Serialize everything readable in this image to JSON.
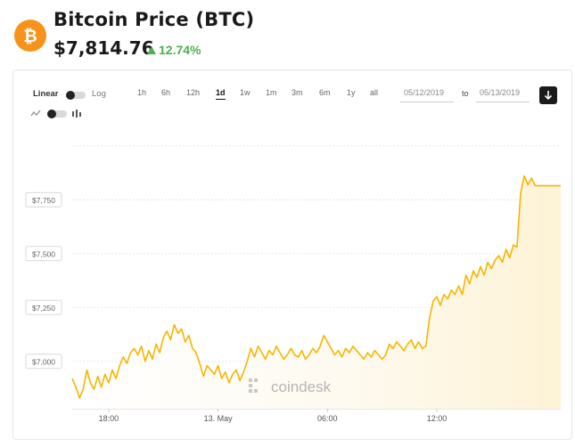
{
  "header": {
    "title": "Bitcoin Price (BTC)",
    "price": "$7,814.76",
    "change": "12.74%",
    "change_color": "#4caf50",
    "logo_color": "#f7931a",
    "logo_icon": "bitcoin-logo-icon"
  },
  "controls": {
    "scale_linear_label": "Linear",
    "scale_log_label": "Log",
    "ranges": [
      "1h",
      "6h",
      "1d",
      "1w",
      "1m",
      "3m",
      "6m",
      "1y",
      "all"
    ],
    "ranges_display": [
      "1h",
      "6h",
      "12h",
      "1d",
      "1w",
      "1m",
      "3m",
      "6m",
      "1y",
      "all"
    ],
    "active_range": "1d",
    "date_from": "05/12/2019",
    "to_label": "to",
    "date_to": "05/13/2019",
    "download_icon": "download-icon",
    "line_icon": "line-chart-icon",
    "candle_icon": "candlestick-icon"
  },
  "watermark": "coindesk",
  "chart_data": {
    "type": "area",
    "title": "",
    "xlabel": "",
    "ylabel": "",
    "x_tick_labels": [
      "18:00",
      "13. May",
      "06:00",
      "12:00"
    ],
    "y_tick_labels": [
      "$7,000",
      "$7,250",
      "$7,500",
      "$7,750"
    ],
    "y_ticks": [
      7000,
      7250,
      7500,
      7750
    ],
    "ylim": [
      6780,
      8020
    ],
    "x_unit": "hours since 12 May 16:00",
    "xlim": [
      0,
      26.8
    ],
    "x_ticks": [
      2,
      8,
      14,
      20
    ],
    "grid": true,
    "line_color": "#f7b500",
    "fill_color": "#fdf3d6",
    "series": [
      {
        "x": [
          0,
          0.2,
          0.4,
          0.6,
          0.8,
          1.0,
          1.2,
          1.4,
          1.6,
          1.8,
          2.0,
          2.2,
          2.4,
          2.6,
          2.8,
          3.0,
          3.2,
          3.4,
          3.6,
          3.8,
          4.0,
          4.2,
          4.4,
          4.6,
          4.8,
          5.0,
          5.2,
          5.4,
          5.6,
          5.8,
          6.0,
          6.2,
          6.4,
          6.6,
          6.8,
          7.0,
          7.2,
          7.4,
          7.6,
          7.8,
          8.0,
          8.2,
          8.4,
          8.6,
          8.8,
          9.0,
          9.2,
          9.4,
          9.6,
          9.8,
          10.0,
          10.2,
          10.4,
          10.6,
          10.8,
          11.0,
          11.2,
          11.4,
          11.6,
          11.8,
          12.0,
          12.2,
          12.4,
          12.6,
          12.8,
          13.0,
          13.2,
          13.4,
          13.6,
          13.8,
          14.0,
          14.2,
          14.4,
          14.6,
          14.8,
          15.0,
          15.2,
          15.4,
          15.6,
          15.8,
          16.0,
          16.2,
          16.4,
          16.6,
          16.8,
          17.0,
          17.2,
          17.4,
          17.6,
          17.8,
          18.0,
          18.2,
          18.4,
          18.6,
          18.8,
          19.0,
          19.2,
          19.4,
          19.6,
          19.8,
          20.0,
          20.2,
          20.4,
          20.6,
          20.8,
          21.0,
          21.2,
          21.4,
          21.6,
          21.8,
          22.0,
          22.2,
          22.4,
          22.6,
          22.8,
          23.0,
          23.2,
          23.4,
          23.6,
          23.8,
          24.0,
          24.2,
          24.4,
          24.6,
          24.8,
          25.0,
          25.2,
          25.4,
          25.6,
          25.8,
          26.0,
          26.2,
          26.4,
          26.6,
          26.8
        ],
        "values": [
          6920,
          6880,
          6830,
          6870,
          6960,
          6900,
          6870,
          6930,
          6880,
          6940,
          6900,
          6960,
          6920,
          6980,
          7020,
          6990,
          7040,
          7060,
          7030,
          7070,
          7000,
          7050,
          7010,
          7080,
          7040,
          7110,
          7140,
          7100,
          7170,
          7130,
          7150,
          7090,
          7120,
          7060,
          7040,
          6990,
          6930,
          6980,
          6960,
          6940,
          6980,
          6920,
          6950,
          6900,
          6940,
          6960,
          6910,
          6950,
          7000,
          7060,
          7020,
          7070,
          7040,
          7010,
          7050,
          7030,
          7070,
          7040,
          7010,
          7030,
          7060,
          7030,
          7020,
          7050,
          7010,
          7030,
          7060,
          7040,
          7070,
          7120,
          7090,
          7060,
          7030,
          7050,
          7020,
          7060,
          7040,
          7070,
          7050,
          7030,
          7010,
          7040,
          7020,
          7050,
          7030,
          7010,
          7030,
          7080,
          7060,
          7090,
          7070,
          7050,
          7080,
          7100,
          7060,
          7090,
          7060,
          7070,
          7200,
          7280,
          7300,
          7260,
          7310,
          7290,
          7330,
          7310,
          7350,
          7310,
          7400,
          7360,
          7420,
          7390,
          7440,
          7400,
          7460,
          7430,
          7470,
          7490,
          7460,
          7520,
          7480,
          7540,
          7530,
          7780,
          7860,
          7820,
          7850,
          7815,
          7815,
          7815,
          7815,
          7815,
          7815,
          7815,
          7815
        ]
      }
    ]
  }
}
